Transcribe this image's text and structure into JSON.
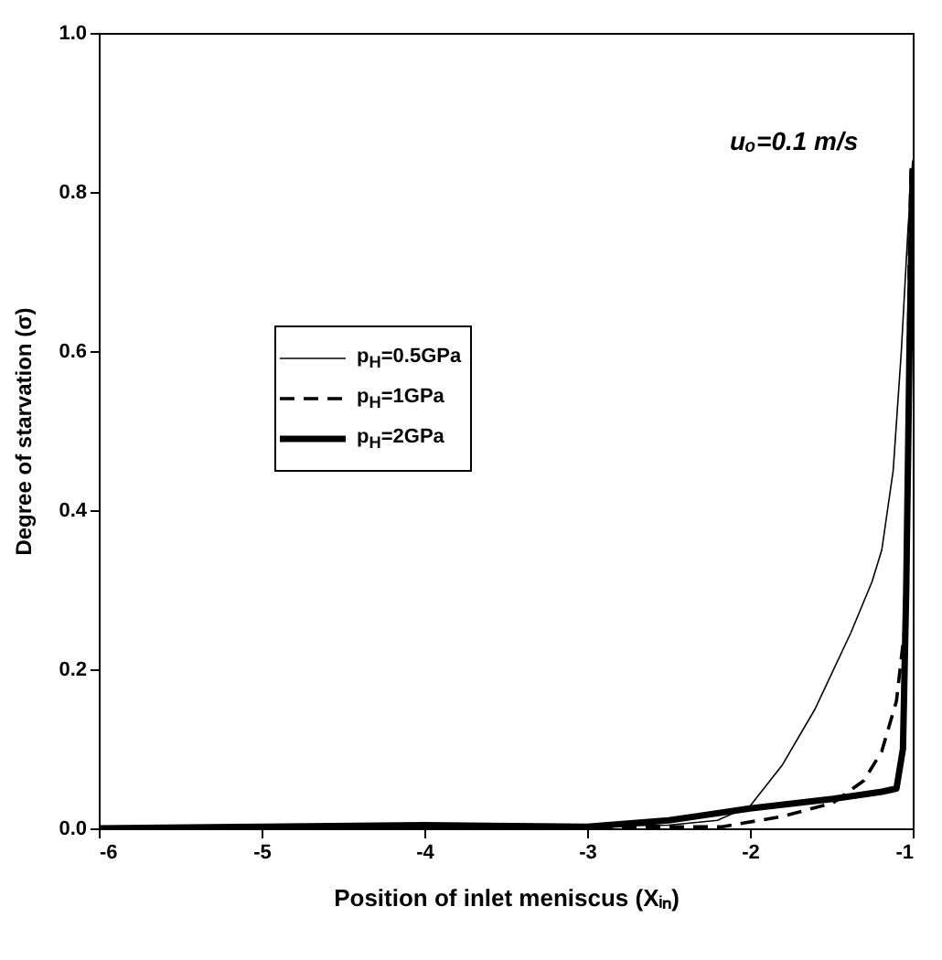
{
  "chart_data": {
    "type": "line",
    "xlabel": "Position of inlet meniscus (Xᵢₙ)",
    "ylabel": "Degree of starvation (σ)",
    "annotations": [
      "uₒ=0.1 m/s"
    ],
    "legend": "left",
    "xlim": [
      -6,
      -1
    ],
    "ylim": [
      0,
      1
    ],
    "xticks": [
      -6,
      -5,
      -4,
      -3,
      -2,
      -1
    ],
    "yticks": [
      {
        "value": 0,
        "label": "0.0"
      },
      {
        "value": 0.2,
        "label": "0.2"
      },
      {
        "value": 0.4,
        "label": "0.4"
      },
      {
        "value": 0.6,
        "label": "0.6"
      },
      {
        "value": 0.8,
        "label": "0.8"
      },
      {
        "value": 1,
        "label": "1.0"
      }
    ],
    "series": [
      {
        "name": "p$_{H}$=0.5GPa",
        "color": "#000000",
        "line_style": "solid",
        "x": [
          -6,
          -5,
          -4,
          -3,
          -2.5,
          -2.2,
          -2.0,
          -1.8,
          -1.6,
          -1.38,
          -1.25,
          -1.19,
          -1.12,
          -1.07,
          -1.03,
          -1.0
        ],
        "values": [
          0,
          0.003,
          0.005,
          0.003,
          0.004,
          0.01,
          0.028,
          0.08,
          0.15,
          0.246,
          0.31,
          0.35,
          0.45,
          0.6,
          0.75,
          0.84
        ]
      },
      {
        "name": "p$_{H}$=1GPa",
        "color": "#000000",
        "line_style": "dashed",
        "x": [
          -6,
          -5,
          -4,
          -3,
          -2.5,
          -2.17,
          -1.8,
          -1.49,
          -1.3,
          -1.19,
          -1.1,
          -1.05,
          -1.03,
          -1.02,
          -1.01
        ],
        "values": [
          0,
          0.002,
          0.004,
          0.002,
          0.002,
          0.002,
          0.015,
          0.032,
          0.06,
          0.097,
          0.16,
          0.25,
          0.5,
          0.75,
          0.83
        ]
      },
      {
        "name": "p$_{H}$=2GPa",
        "color": "#000000",
        "line_style": "solid",
        "x": [
          -6,
          -5,
          -4,
          -3,
          -2.5,
          -2.0,
          -1.49,
          -1.19,
          -1.1,
          -1.06,
          -1.04,
          -1.02,
          -1.0
        ],
        "values": [
          0,
          0.002,
          0.004,
          0.002,
          0.01,
          0.025,
          0.037,
          0.046,
          0.05,
          0.1,
          0.3,
          0.6,
          0.83
        ]
      }
    ]
  }
}
